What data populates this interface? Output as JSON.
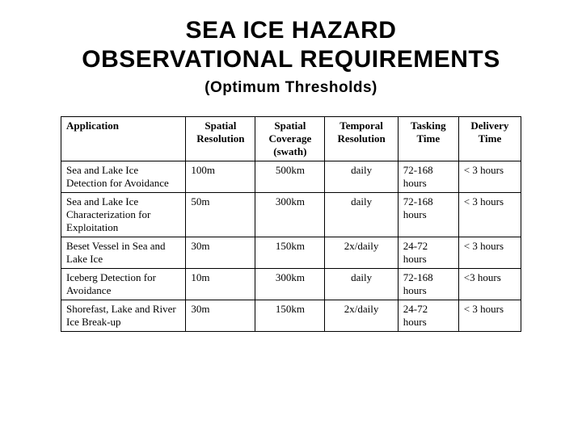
{
  "title": {
    "line1": "SEA ICE HAZARD",
    "line2": "OBSERVATIONAL REQUIREMENTS",
    "subtitle": "(Optimum Thresholds)"
  },
  "table": {
    "columns": [
      {
        "key": "application",
        "label": "Application",
        "class": "col-app",
        "align": "left"
      },
      {
        "key": "spatial_resolution",
        "label": "Spatial Resolution",
        "class": "col-sres",
        "align": "left"
      },
      {
        "key": "spatial_coverage",
        "label": "Spatial Coverage (swath)",
        "class": "col-scov",
        "align": "center"
      },
      {
        "key": "temporal_resolution",
        "label": "Temporal Resolution",
        "class": "col-tres",
        "align": "center"
      },
      {
        "key": "tasking_time",
        "label": "Tasking Time",
        "class": "col-task",
        "align": "left"
      },
      {
        "key": "delivery_time",
        "label": "Delivery Time",
        "class": "col-deliv",
        "align": "left"
      }
    ],
    "rows": [
      {
        "application": "Sea and Lake Ice Detection for Avoidance",
        "spatial_resolution": "100m",
        "spatial_coverage": "500km",
        "temporal_resolution": "daily",
        "tasking_time": "72-168 hours",
        "delivery_time": "< 3 hours"
      },
      {
        "application": "Sea and Lake Ice Characterization for Exploitation",
        "spatial_resolution": "50m",
        "spatial_coverage": "300km",
        "temporal_resolution": "daily",
        "tasking_time": "72-168 hours",
        "delivery_time": "< 3 hours"
      },
      {
        "application": "Beset Vessel in Sea and Lake Ice",
        "spatial_resolution": "30m",
        "spatial_coverage": "150km",
        "temporal_resolution": "2x/daily",
        "tasking_time": "24-72 hours",
        "delivery_time": "< 3 hours"
      },
      {
        "application": "Iceberg Detection for Avoidance",
        "spatial_resolution": "10m",
        "spatial_coverage": "300km",
        "temporal_resolution": "daily",
        "tasking_time": "72-168 hours",
        "delivery_time": "<3 hours"
      },
      {
        "application": "Shorefast, Lake and River Ice Break-up",
        "spatial_resolution": "30m",
        "spatial_coverage": "150km",
        "temporal_resolution": "2x/daily",
        "tasking_time": "24-72 hours",
        "delivery_time": "< 3 hours"
      }
    ],
    "border_color": "#000000",
    "header_fontweight": "bold",
    "cell_fontsize": 13,
    "font_family": "Times New Roman"
  },
  "colors": {
    "background": "#ffffff",
    "text": "#000000"
  }
}
